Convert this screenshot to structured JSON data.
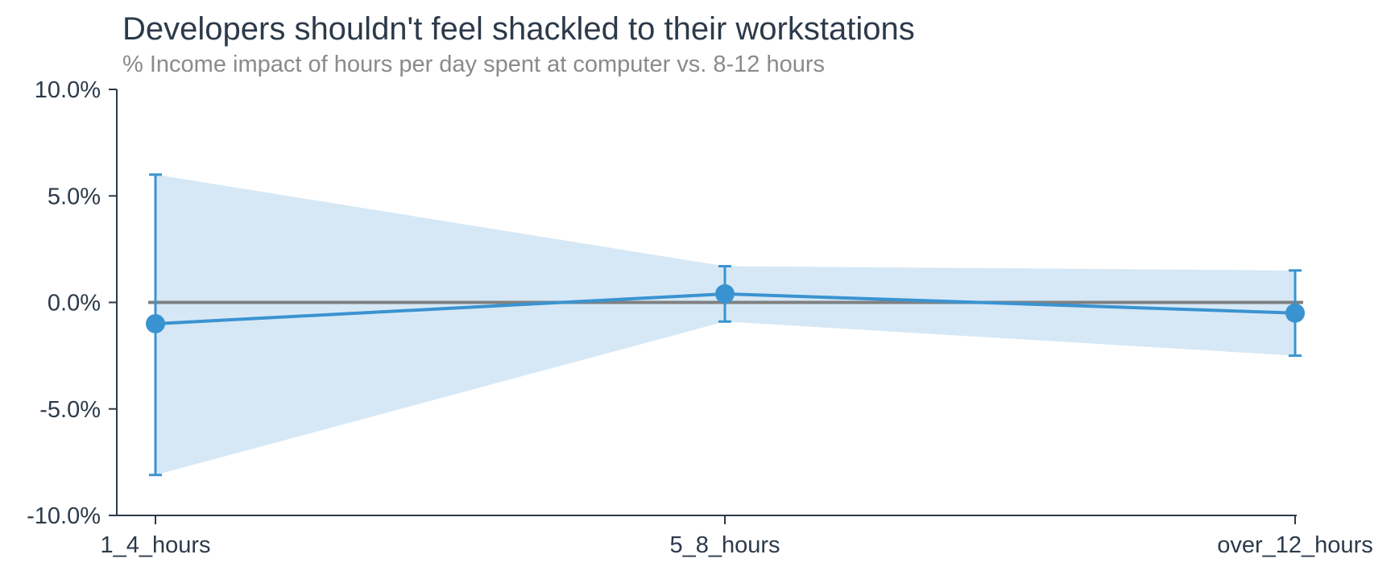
{
  "chart_data": {
    "type": "line",
    "title": "Developers shouldn't feel shackled to their workstations",
    "subtitle": "% Income impact of hours per day spent at computer vs. 8-12 hours",
    "xlabel": "",
    "ylabel": "",
    "categories": [
      "1_4_hours",
      "5_8_hours",
      "over_12_hours"
    ],
    "series": [
      {
        "values": [
          -1.0,
          0.4,
          -0.5
        ],
        "lower": [
          -8.1,
          -0.9,
          -2.5
        ],
        "upper": [
          6.0,
          1.7,
          1.5
        ]
      }
    ],
    "reference_line": 0.0,
    "ylim": [
      -10.0,
      10.0
    ],
    "yticks": [
      -10.0,
      -5.0,
      0.0,
      5.0,
      10.0
    ],
    "ytick_labels": [
      "-10.0%",
      "-5.0%",
      "0.0%",
      "5.0%",
      "10.0%"
    ],
    "grid": false,
    "legend": "none",
    "colors": {
      "line": "#3a93d1",
      "band": "#d6e8f5",
      "reference": "#808080",
      "axis": "#2c3a4a",
      "title": "#2c3a4a",
      "subtitle": "#8a8a8a"
    }
  }
}
